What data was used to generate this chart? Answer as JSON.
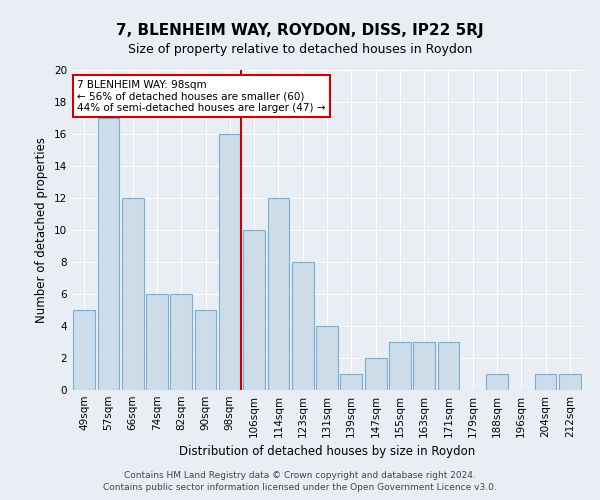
{
  "title": "7, BLENHEIM WAY, ROYDON, DISS, IP22 5RJ",
  "subtitle": "Size of property relative to detached houses in Roydon",
  "xlabel": "Distribution of detached houses by size in Roydon",
  "ylabel": "Number of detached properties",
  "categories": [
    "49sqm",
    "57sqm",
    "66sqm",
    "74sqm",
    "82sqm",
    "90sqm",
    "98sqm",
    "106sqm",
    "114sqm",
    "123sqm",
    "131sqm",
    "139sqm",
    "147sqm",
    "155sqm",
    "163sqm",
    "171sqm",
    "179sqm",
    "188sqm",
    "196sqm",
    "204sqm",
    "212sqm"
  ],
  "values": [
    5,
    17,
    12,
    6,
    6,
    5,
    16,
    10,
    12,
    8,
    4,
    1,
    2,
    3,
    3,
    3,
    0,
    1,
    0,
    1,
    1
  ],
  "bar_color": "#ccdce8",
  "bar_edge_color": "#7aafd4",
  "highlight_index": 6,
  "highlight_line_color": "#cc0000",
  "ylim": [
    0,
    20
  ],
  "yticks": [
    0,
    2,
    4,
    6,
    8,
    10,
    12,
    14,
    16,
    18,
    20
  ],
  "annotation_title": "7 BLENHEIM WAY: 98sqm",
  "annotation_line1": "← 56% of detached houses are smaller (60)",
  "annotation_line2": "44% of semi-detached houses are larger (47) →",
  "annotation_box_color": "#ffffff",
  "annotation_box_edge": "#cc0000",
  "footer_line1": "Contains HM Land Registry data © Crown copyright and database right 2024.",
  "footer_line2": "Contains public sector information licensed under the Open Government Licence v3.0.",
  "bg_color": "#e8eef4",
  "grid_color": "#ffffff",
  "title_fontsize": 11,
  "subtitle_fontsize": 9,
  "axis_label_fontsize": 8.5,
  "tick_fontsize": 7.5,
  "footer_fontsize": 6.5,
  "annotation_fontsize": 7.5
}
